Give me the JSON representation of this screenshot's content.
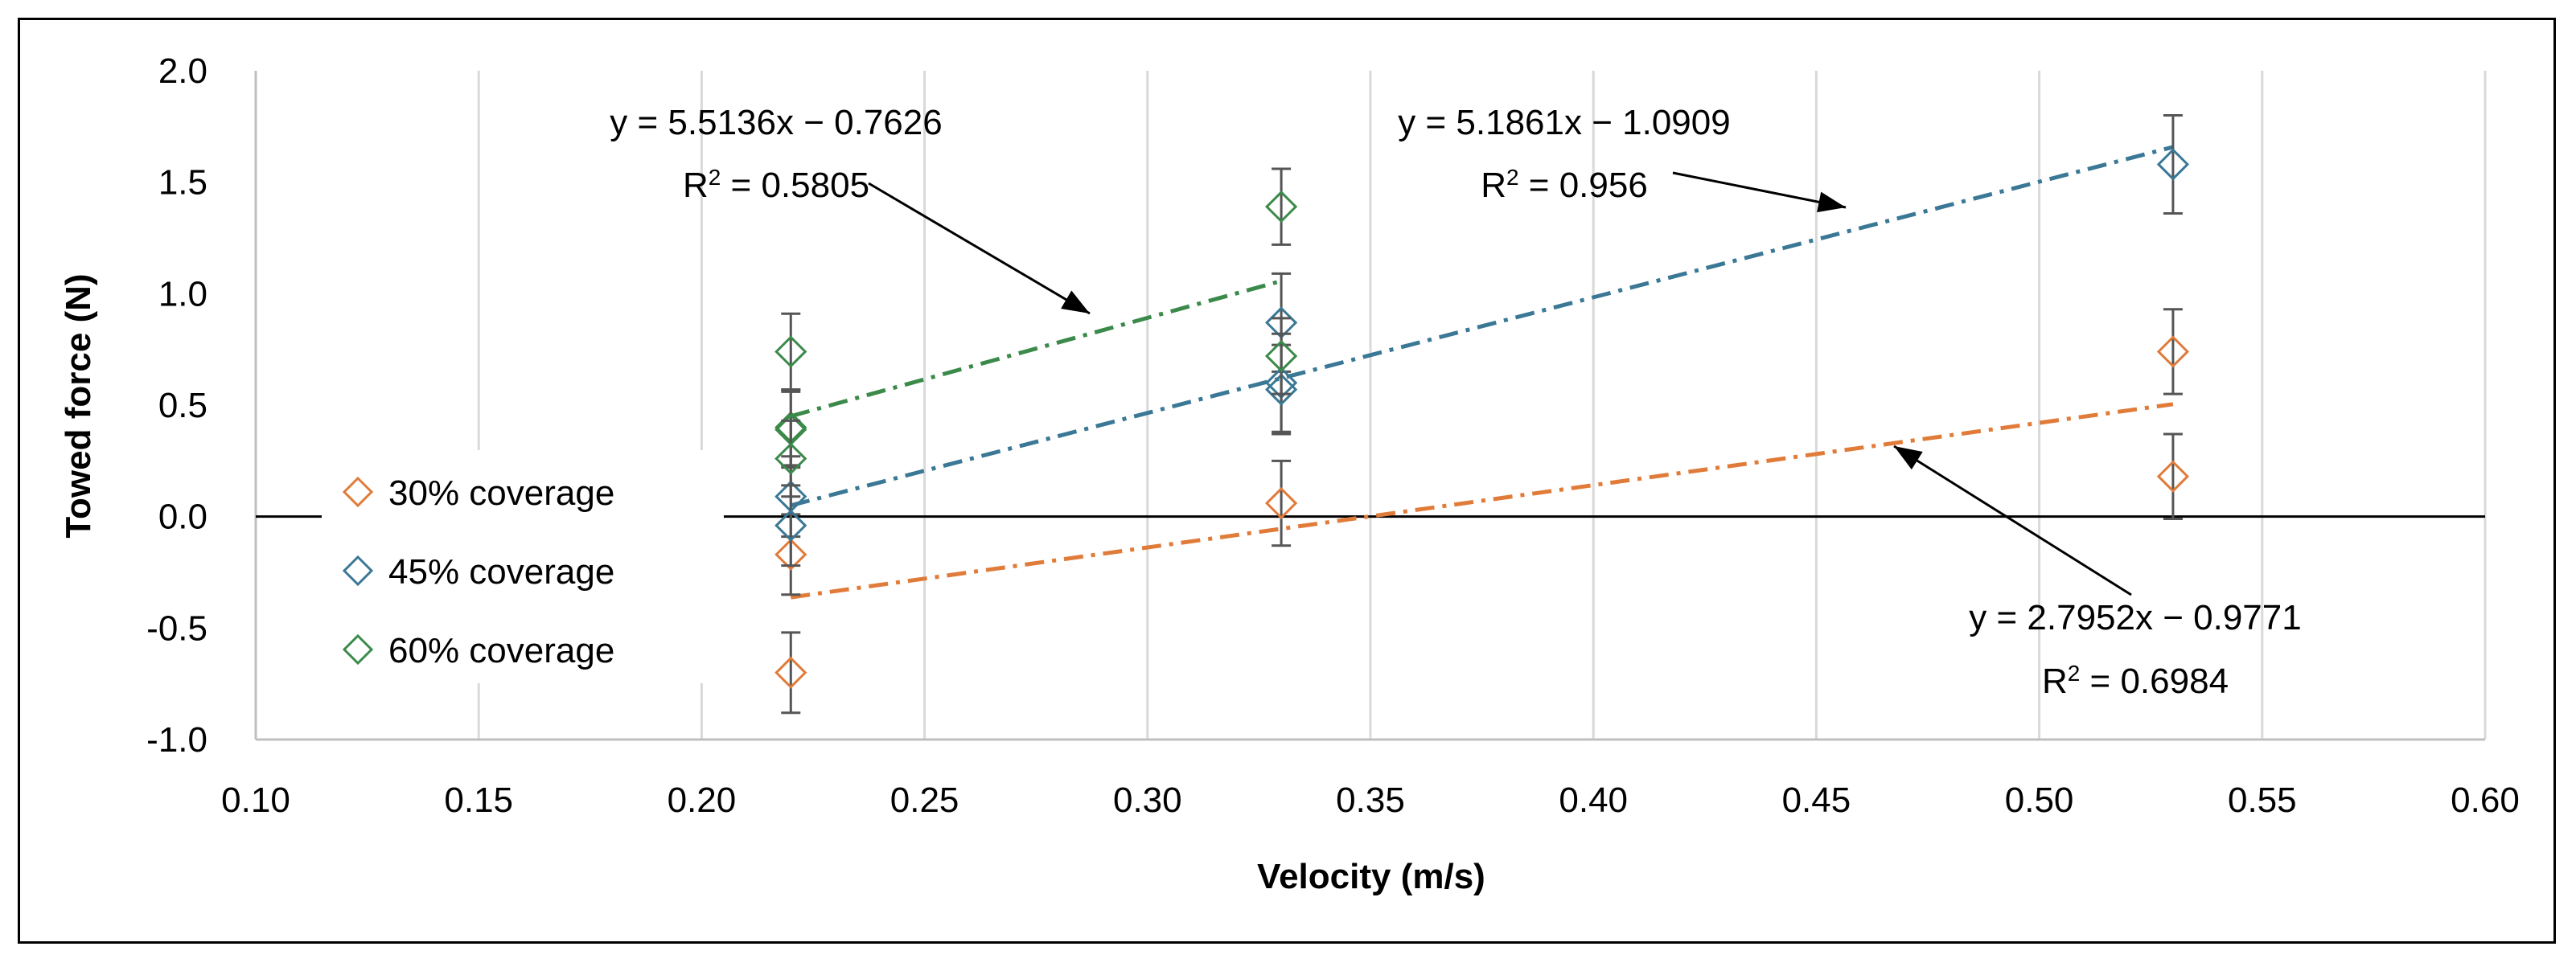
{
  "chart_data": {
    "type": "scatter",
    "xlabel": "Velocity (m/s)",
    "ylabel": "Towed force (N)",
    "xlim": [
      0.1,
      0.6
    ],
    "ylim": [
      -1.0,
      2.0
    ],
    "x_ticks": [
      "0.10",
      "0.15",
      "0.20",
      "0.25",
      "0.30",
      "0.35",
      "0.40",
      "0.45",
      "0.50",
      "0.55",
      "0.60"
    ],
    "y_ticks": [
      "2.0",
      "1.5",
      "1.0",
      "0.5",
      "0.0",
      "-0.5",
      "-1.0"
    ],
    "grid": "vertical",
    "legend_position": "left",
    "series": [
      {
        "name": "30% coverage",
        "color": "#e07b39",
        "points": [
          {
            "x": 0.22,
            "y": -0.17,
            "err": 0.18
          },
          {
            "x": 0.22,
            "y": -0.7,
            "err": 0.18
          },
          {
            "x": 0.33,
            "y": 0.06,
            "err": 0.19
          },
          {
            "x": 0.53,
            "y": 0.74,
            "err": 0.19
          },
          {
            "x": 0.53,
            "y": 0.18,
            "err": 0.19
          }
        ],
        "trendline": {
          "slope": 2.7952,
          "intercept": -0.9771,
          "x_range": [
            0.22,
            0.53
          ]
        },
        "equation": "y = 2.7952x − 0.9771",
        "r2_label": "R",
        "r2_value": " = 0.6984"
      },
      {
        "name": "45% coverage",
        "color": "#3a7896",
        "points": [
          {
            "x": 0.22,
            "y": 0.09,
            "err": 0.18
          },
          {
            "x": 0.22,
            "y": -0.04,
            "err": 0.18
          },
          {
            "x": 0.33,
            "y": 0.87,
            "err": 0.22
          },
          {
            "x": 0.33,
            "y": 0.6,
            "err": 0.22
          },
          {
            "x": 0.33,
            "y": 0.57,
            "err": 0.2
          },
          {
            "x": 0.53,
            "y": 1.58,
            "err": 0.22
          }
        ],
        "trendline": {
          "slope": 5.1861,
          "intercept": -1.0909,
          "x_range": [
            0.22,
            0.53
          ]
        },
        "equation": "y = 5.1861x − 1.0909",
        "r2_label": "R",
        "r2_value": " = 0.956"
      },
      {
        "name": "60% coverage",
        "color": "#3b8a4a",
        "points": [
          {
            "x": 0.22,
            "y": 0.74,
            "err": 0.17
          },
          {
            "x": 0.22,
            "y": 0.4,
            "err": 0.17
          },
          {
            "x": 0.22,
            "y": 0.39,
            "err": 0.17
          },
          {
            "x": 0.22,
            "y": 0.26,
            "err": 0.17
          },
          {
            "x": 0.33,
            "y": 1.39,
            "err": 0.17
          },
          {
            "x": 0.33,
            "y": 0.72,
            "err": 0.17
          }
        ],
        "trendline": {
          "slope": 5.5136,
          "intercept": -0.7626,
          "x_range": [
            0.22,
            0.33
          ]
        },
        "equation": "y = 5.5136x − 0.7626",
        "r2_label": "R",
        "r2_value": " = 0.5805"
      }
    ]
  }
}
